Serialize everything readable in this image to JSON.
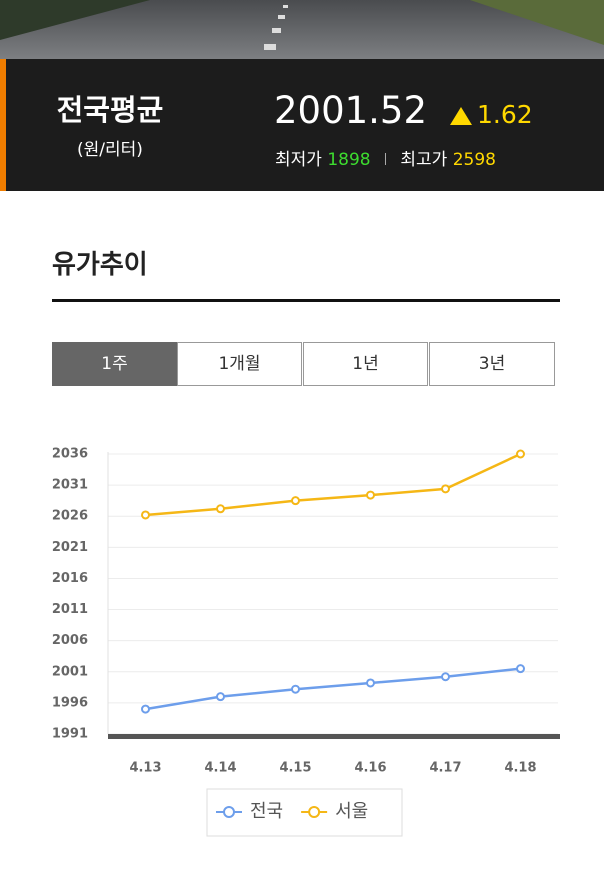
{
  "header": {
    "title": "전국평균",
    "unit": "(원/리터)",
    "price": 2001.52,
    "change": 1.62,
    "low_label": "최저가",
    "low": 1898,
    "high_label": "최고가",
    "high": 2598
  },
  "section": {
    "title": "유가추이",
    "tabs": [
      "1주",
      "1개월",
      "1년",
      "3년"
    ]
  },
  "chart_data": {
    "type": "line",
    "categories": [
      "4.13",
      "4.14",
      "4.15",
      "4.16",
      "4.17",
      "4.18"
    ],
    "series": [
      {
        "name": "전국",
        "color": "#6d9eeb",
        "values": [
          1995.0,
          1997.0,
          1998.2,
          1999.2,
          2000.2,
          2001.5
        ]
      },
      {
        "name": "서울",
        "color": "#f5b716",
        "values": [
          2026.2,
          2027.2,
          2028.5,
          2029.4,
          2030.4,
          2036
        ]
      }
    ],
    "ylim": [
      1991,
      2036
    ],
    "yticks": [
      1991,
      1996,
      2001,
      2006,
      2011,
      2016,
      2021,
      2026,
      2031,
      2036
    ],
    "grid": true
  }
}
